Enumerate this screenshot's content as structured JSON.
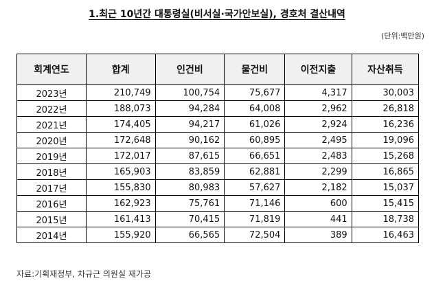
{
  "title": "1.최근 10년간 대통령실(비서실·국가안보실), 경호처 결산내역",
  "unit_note": "(단위:백만원)",
  "columns": [
    "회계연도",
    "합계",
    "인건비",
    "물건비",
    "이전지출",
    "자산취득"
  ],
  "rows": [
    [
      "2023년",
      "210,749",
      "100,754",
      "75,677",
      "4,317",
      "30,003"
    ],
    [
      "2022년",
      "188,073",
      "94,284",
      "64,008",
      "2,962",
      "26,818"
    ],
    [
      "2021년",
      "174,405",
      "94,217",
      "61,026",
      "2,924",
      "16,236"
    ],
    [
      "2020년",
      "172,648",
      "90,162",
      "60,895",
      "2,495",
      "19,096"
    ],
    [
      "2019년",
      "172,017",
      "87,615",
      "66,651",
      "2,483",
      "15,268"
    ],
    [
      "2018년",
      "165,903",
      "83,859",
      "62,881",
      "2,299",
      "16,865"
    ],
    [
      "2017년",
      "155,830",
      "80,983",
      "57,627",
      "2,182",
      "15,037"
    ],
    [
      "2016년",
      "162,923",
      "75,761",
      "71,146",
      "600",
      "15,415"
    ],
    [
      "2015년",
      "161,413",
      "70,415",
      "71,819",
      "441",
      "18,738"
    ],
    [
      "2014년",
      "155,920",
      "66,565",
      "72,504",
      "389",
      "16,463"
    ]
  ],
  "source": "자료:기획재정부, 차규근 의원실 재가공"
}
